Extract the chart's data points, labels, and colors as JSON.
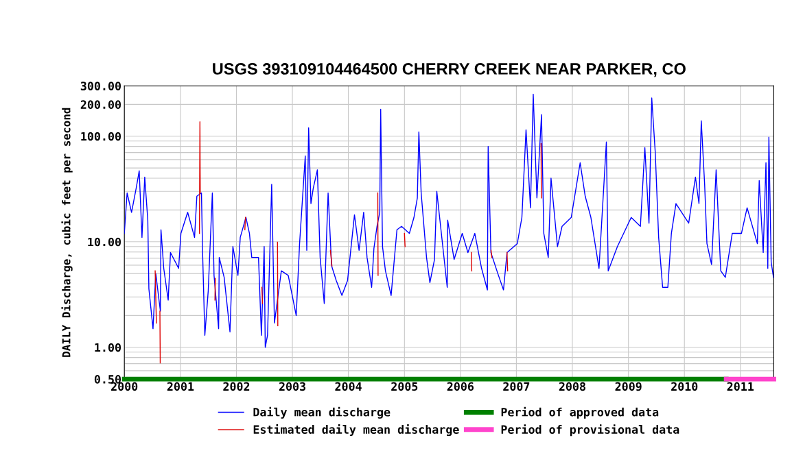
{
  "chart_data": {
    "type": "line",
    "title": "USGS 393109104464500 CHERRY CREEK NEAR PARKER, CO",
    "ylabel": "DAILY Discharge, cubic feet per second",
    "log": "y",
    "grid": true,
    "legend": "bottom",
    "line_style": "solid",
    "marker": "none",
    "xlim": [
      "2000-01-01",
      "2011-08-07"
    ],
    "xticks": [
      "2000",
      "2001",
      "2002",
      "2003",
      "2004",
      "2005",
      "2006",
      "2007",
      "2008",
      "2009",
      "2010",
      "2011"
    ],
    "ylim": [
      0.5,
      300
    ],
    "yticks": [
      {
        "value": 0.5,
        "label": "0.50"
      },
      {
        "value": 0.6,
        "label": null
      },
      {
        "value": 0.7,
        "label": null
      },
      {
        "value": 0.8,
        "label": null
      },
      {
        "value": 0.9,
        "label": null
      },
      {
        "value": 1,
        "label": "1.00"
      },
      {
        "value": 2,
        "label": null
      },
      {
        "value": 3,
        "label": null
      },
      {
        "value": 4,
        "label": null
      },
      {
        "value": 5,
        "label": null
      },
      {
        "value": 6,
        "label": null
      },
      {
        "value": 7,
        "label": null
      },
      {
        "value": 8,
        "label": null
      },
      {
        "value": 9,
        "label": null
      },
      {
        "value": 10,
        "label": "10.00"
      },
      {
        "value": 20,
        "label": null
      },
      {
        "value": 30,
        "label": null
      },
      {
        "value": 40,
        "label": null
      },
      {
        "value": 50,
        "label": null
      },
      {
        "value": 60,
        "label": null
      },
      {
        "value": 70,
        "label": null
      },
      {
        "value": 80,
        "label": null
      },
      {
        "value": 90,
        "label": null
      },
      {
        "value": 100,
        "label": "100.00"
      },
      {
        "value": 200,
        "label": "200.00"
      },
      {
        "value": 300,
        "label": "300.00"
      }
    ],
    "series": [
      {
        "name": "Daily mean discharge",
        "color": "#0000ff",
        "x": [
          "2000-01-01",
          "2000-01-19",
          "2000-02-17",
          "2000-03-18",
          "2000-04-07",
          "2000-04-25",
          "2000-05-13",
          "2000-06-02",
          "2000-06-09",
          "2000-07-06",
          "2000-07-24",
          "2000-08-23",
          "2000-08-27",
          "2000-09-14",
          "2000-10-13",
          "2000-10-28",
          "2000-12-20",
          "2001-01-04",
          "2001-02-17",
          "2001-04-03",
          "2001-04-18",
          "2001-05-18",
          "2001-05-25",
          "2001-06-09",
          "2001-07-01",
          "2001-07-28",
          "2001-08-08",
          "2001-09-07",
          "2001-09-11",
          "2001-10-13",
          "2001-11-20",
          "2001-12-09",
          "2002-01-11",
          "2002-01-26",
          "2002-03-04",
          "2002-03-27",
          "2002-04-11",
          "2002-05-25",
          "2002-06-13",
          "2002-07-01",
          "2002-07-08",
          "2002-07-23",
          "2002-08-19",
          "2002-09-06",
          "2002-10-21",
          "2002-12-05",
          "2003-01-26",
          "2003-02-17",
          "2003-03-11",
          "2003-03-26",
          "2003-04-05",
          "2003-04-17",
          "2003-05-02",
          "2003-05-17",
          "2003-06-13",
          "2003-07-01",
          "2003-07-28",
          "2003-08-22",
          "2003-09-14",
          "2003-10-14",
          "2003-11-20",
          "2003-12-27",
          "2004-02-10",
          "2004-03-11",
          "2004-04-10",
          "2004-05-02",
          "2004-06-01",
          "2004-06-16",
          "2004-07-06",
          "2004-07-24",
          "2004-07-30",
          "2004-08-11",
          "2004-08-30",
          "2004-10-06",
          "2004-11-13",
          "2004-12-13",
          "2005-02-02",
          "2005-03-04",
          "2005-03-26",
          "2005-04-05",
          "2005-04-20",
          "2005-05-25",
          "2005-06-16",
          "2005-07-16",
          "2005-07-31",
          "2005-10-07",
          "2005-10-10",
          "2005-11-21",
          "2006-01-13",
          "2006-02-19",
          "2006-04-05",
          "2006-05-19",
          "2006-06-26",
          "2006-07-01",
          "2006-07-19",
          "2006-09-02",
          "2006-10-09",
          "2006-11-01",
          "2007-01-07",
          "2007-02-06",
          "2007-03-05",
          "2007-04-03",
          "2007-04-21",
          "2007-05-15",
          "2007-06-14",
          "2007-06-29",
          "2007-07-28",
          "2007-08-15",
          "2007-09-26",
          "2007-10-26",
          "2007-12-25",
          "2008-02-21",
          "2008-03-25",
          "2008-05-01",
          "2008-06-23",
          "2008-08-10",
          "2008-08-22",
          "2008-10-21",
          "2009-01-19",
          "2009-03-20",
          "2009-04-18",
          "2009-05-15",
          "2009-06-02",
          "2009-06-25",
          "2009-07-17",
          "2009-08-12",
          "2009-09-15",
          "2009-10-08",
          "2009-11-07",
          "2010-01-29",
          "2010-03-14",
          "2010-04-06",
          "2010-04-21",
          "2010-05-13",
          "2010-05-28",
          "2010-06-27",
          "2010-07-27",
          "2010-08-26",
          "2010-09-25",
          "2010-11-09",
          "2011-01-08",
          "2011-02-14",
          "2011-04-22",
          "2011-05-04",
          "2011-05-30",
          "2011-06-17",
          "2011-06-29",
          "2011-07-06",
          "2011-07-21",
          "2011-08-05"
        ],
        "values": [
          12,
          29,
          19,
          32,
          47,
          11,
          41,
          16,
          3.6,
          1.5,
          5,
          2.2,
          13,
          5.6,
          2.8,
          7.9,
          5.6,
          12,
          19,
          11,
          27,
          29,
          8.3,
          1.3,
          3.4,
          29,
          4.8,
          1.5,
          7.1,
          4.6,
          1.4,
          9,
          4.8,
          11,
          17,
          12,
          7.1,
          7.1,
          1.3,
          9,
          1.0,
          1.3,
          35,
          1.7,
          5.3,
          4.8,
          2.0,
          9.6,
          30,
          65,
          8.3,
          120,
          23,
          32,
          48,
          7.1,
          2.6,
          29,
          5.9,
          4.3,
          3.1,
          4.3,
          18,
          8.3,
          19,
          7.1,
          3.7,
          8.7,
          14,
          19,
          180,
          9,
          5.3,
          3.1,
          13,
          14,
          12,
          17,
          26,
          110,
          29,
          7.1,
          4.1,
          6.8,
          30,
          3.7,
          16,
          6.8,
          12,
          7.9,
          12,
          5.6,
          3.5,
          80,
          7.9,
          5,
          3.5,
          7.9,
          9.6,
          17,
          115,
          21,
          250,
          26,
          160,
          12,
          7.1,
          40,
          9,
          14,
          17,
          56,
          27,
          17,
          5.6,
          88,
          5.3,
          9,
          17,
          14,
          78,
          15,
          230,
          70,
          11,
          3.7,
          3.7,
          12,
          23,
          15,
          41,
          23,
          140,
          35,
          9.6,
          6.1,
          48,
          5.3,
          4.6,
          12,
          12,
          21,
          9.6,
          38,
          7.9,
          56,
          5.6,
          98,
          6.4,
          4.6
        ]
      },
      {
        "name": "Estimated daily mean discharge",
        "color": "#dd0000",
        "x": [
          "2000-07-20",
          "2000-07-28",
          "2000-08-01",
          "2000-08-20",
          "2000-08-22",
          "2000-08-24",
          "2001-05-05",
          "2001-05-08",
          "2001-05-10",
          "2001-05-12",
          "2001-08-14",
          "2001-08-16",
          "2001-08-18",
          "2002-02-25",
          "2002-03-01",
          "2002-03-03",
          "2002-06-16",
          "2002-06-20",
          "2002-06-22",
          "2002-09-26",
          "2002-09-28",
          "2002-09-30",
          "2003-09-06",
          "2003-09-16",
          "2003-09-18",
          "2004-07-11",
          "2004-07-13",
          "2004-07-15",
          "2005-01-01",
          "2005-01-05",
          "2005-01-07",
          "2006-03-13",
          "2006-03-16",
          "2006-03-18",
          "2006-07-20",
          "2006-07-25",
          "2006-07-27",
          "2006-11-01",
          "2006-11-05",
          "2006-11-07",
          "2007-06-11",
          "2007-06-13"
        ],
        "values": [
          5.3,
          1.7,
          null,
          2.2,
          0.71,
          null,
          12,
          137,
          29,
          null,
          2.8,
          4.5,
          null,
          13,
          17,
          null,
          3.7,
          2.6,
          null,
          9.9,
          1.6,
          null,
          8.3,
          5.9,
          null,
          29,
          4.8,
          null,
          12,
          9,
          null,
          7.9,
          5.3,
          null,
          8.3,
          7.1,
          null,
          7.9,
          5.3,
          null,
          85,
          26
        ]
      },
      {
        "name": "Period of approved data",
        "color": "#008000",
        "x": [
          "2000-01-01",
          "2010-10-01"
        ],
        "values": [
          0.5,
          0.5
        ]
      },
      {
        "name": "Period of provisional data",
        "color": "#ff44cc",
        "x": [
          "2010-10-01",
          "2011-08-07"
        ],
        "values": [
          0.5,
          0.5
        ]
      }
    ]
  }
}
